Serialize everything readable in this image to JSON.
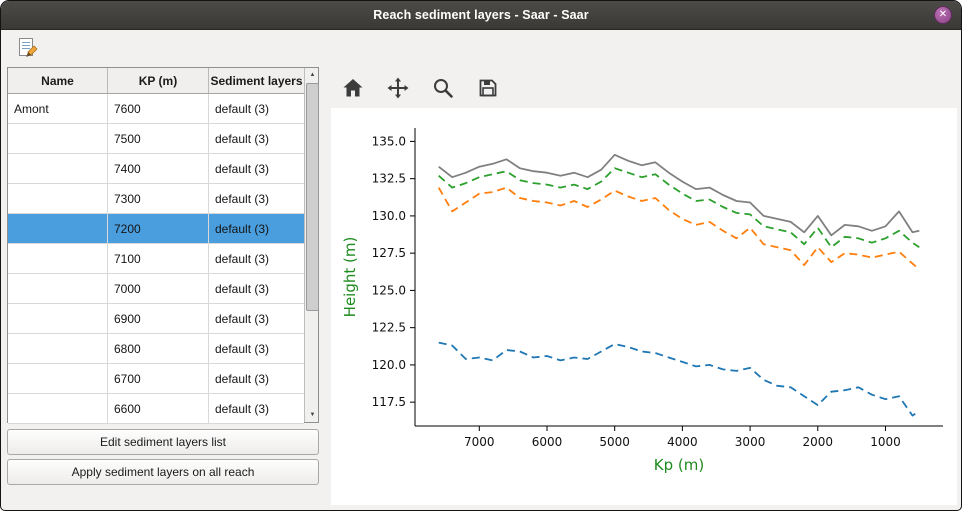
{
  "window": {
    "title": "Reach sediment layers - Saar - Saar"
  },
  "icons": {
    "close": "✕",
    "scroll_up": "▲",
    "scroll_down": "▼"
  },
  "table": {
    "headers": [
      "Name",
      "KP (m)",
      "Sediment layers"
    ],
    "selected_index": 4,
    "rows": [
      [
        "Amont",
        "7600",
        "default (3)"
      ],
      [
        "",
        "7500",
        "default (3)"
      ],
      [
        "",
        "7400",
        "default (3)"
      ],
      [
        "",
        "7300",
        "default (3)"
      ],
      [
        "",
        "7200",
        "default (3)"
      ],
      [
        "",
        "7100",
        "default (3)"
      ],
      [
        "",
        "7000",
        "default (3)"
      ],
      [
        "",
        "6900",
        "default (3)"
      ],
      [
        "",
        "6800",
        "default (3)"
      ],
      [
        "",
        "6700",
        "default (3)"
      ],
      [
        "",
        "6600",
        "default (3)"
      ]
    ]
  },
  "buttons": {
    "edit_label": "Edit sediment layers list",
    "apply_label": "Apply sediment layers on all reach"
  },
  "plot_toolbar": {
    "icons": [
      "home",
      "pan",
      "zoom",
      "save"
    ]
  },
  "chart_data": {
    "type": "line",
    "title": "",
    "xlabel": "Kp (m)",
    "ylabel": "Height (m)",
    "axis_label_color": "#1e8b1e",
    "x_reversed": true,
    "xlim": [
      7950,
      150
    ],
    "ylim": [
      115.9,
      135.9
    ],
    "xticks": [
      7000,
      6000,
      5000,
      4000,
      3000,
      2000,
      1000
    ],
    "xtick_labels": [
      "7000",
      "6000",
      "5000",
      "4000",
      "3000",
      "2000",
      "1000"
    ],
    "yticks": [
      117.5,
      120,
      122.5,
      125,
      127.5,
      130,
      132.5,
      135
    ],
    "ytick_labels": [
      "117.5",
      "120.0",
      "122.5",
      "125.0",
      "127.5",
      "130.0",
      "132.5",
      "135.0"
    ],
    "grid": false,
    "legend": "none",
    "x": [
      7600,
      7400,
      7200,
      7000,
      6800,
      6600,
      6400,
      6200,
      6000,
      5800,
      5600,
      5400,
      5200,
      5000,
      4800,
      4600,
      4400,
      4200,
      4000,
      3800,
      3600,
      3400,
      3200,
      3000,
      2800,
      2600,
      2400,
      2200,
      2000,
      1800,
      1600,
      1400,
      1200,
      1000,
      800,
      600,
      500
    ],
    "series": [
      {
        "name": "gray-solid",
        "color": "#808080",
        "style": "solid",
        "values": [
          133.3,
          132.6,
          132.9,
          133.3,
          133.5,
          133.8,
          133.2,
          133.0,
          132.9,
          132.7,
          132.9,
          132.6,
          133.1,
          134.1,
          133.7,
          133.4,
          133.6,
          132.9,
          132.3,
          131.8,
          131.9,
          131.4,
          131.0,
          130.9,
          130.0,
          129.8,
          129.6,
          128.9,
          130.0,
          128.7,
          129.4,
          129.3,
          129.0,
          129.3,
          130.3,
          128.9,
          129.0
        ]
      },
      {
        "name": "green-dashed",
        "color": "#2ca02c",
        "style": "dashed",
        "values": [
          132.7,
          131.9,
          132.2,
          132.6,
          132.8,
          133.0,
          132.4,
          132.2,
          132.1,
          131.9,
          132.1,
          131.8,
          132.3,
          133.2,
          132.9,
          132.6,
          132.8,
          132.1,
          131.5,
          131.0,
          131.1,
          130.6,
          130.2,
          130.1,
          129.3,
          129.1,
          128.9,
          128.1,
          129.2,
          127.9,
          128.6,
          128.5,
          128.2,
          128.5,
          129.0,
          128.2,
          127.9
        ]
      },
      {
        "name": "orange-dashed",
        "color": "#ff7f0e",
        "style": "dashed",
        "values": [
          131.9,
          130.3,
          130.9,
          131.5,
          131.6,
          131.9,
          131.2,
          131.0,
          130.9,
          130.7,
          131.0,
          130.6,
          131.1,
          131.7,
          131.3,
          131.0,
          131.2,
          130.4,
          129.8,
          129.4,
          129.6,
          129.0,
          128.5,
          129.2,
          128.1,
          127.9,
          127.7,
          126.7,
          127.9,
          126.9,
          127.5,
          127.4,
          127.2,
          127.4,
          127.6,
          126.8,
          126.4
        ]
      },
      {
        "name": "blue-dashed",
        "color": "#1f77b4",
        "style": "dashed",
        "values": [
          121.5,
          121.3,
          120.4,
          120.5,
          120.3,
          121.0,
          120.9,
          120.5,
          120.6,
          120.3,
          120.5,
          120.4,
          120.9,
          121.4,
          121.2,
          120.9,
          120.8,
          120.5,
          120.2,
          119.9,
          120.0,
          119.7,
          119.6,
          119.8,
          119.0,
          118.6,
          118.5,
          117.9,
          117.3,
          118.2,
          118.3,
          118.5,
          118.0,
          117.7,
          117.9,
          116.6,
          116.9
        ]
      }
    ]
  }
}
